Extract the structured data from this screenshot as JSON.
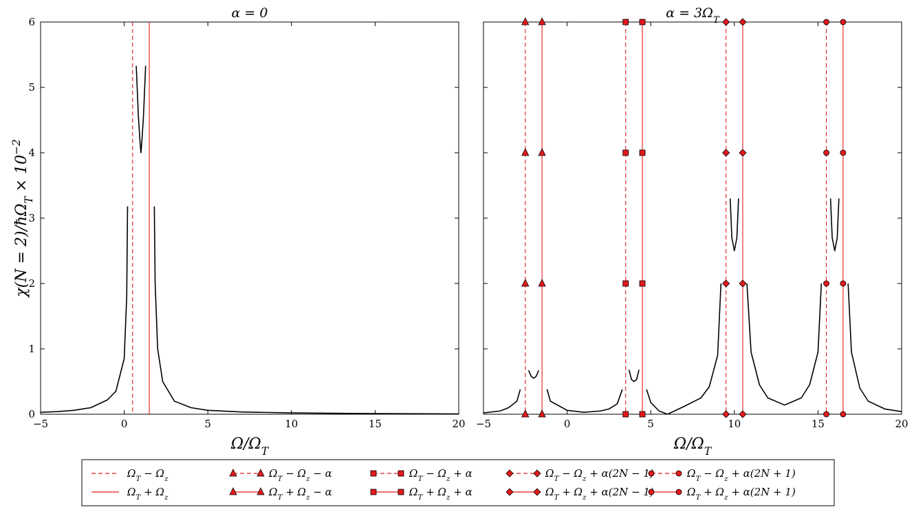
{
  "chart_data": [
    {
      "type": "line",
      "title": "α = 0",
      "xlabel": "Ω/Ω_T",
      "ylabel": "χ(N = 2)/ħΩ_T × 10⁻²",
      "xlim": [
        -5,
        20
      ],
      "ylim": [
        0,
        6
      ],
      "xticks": [
        -5,
        0,
        5,
        10,
        15,
        20
      ],
      "yticks": [
        0,
        1,
        2,
        3,
        4,
        5,
        6
      ],
      "xtick_labels": [
        "−5",
        "0",
        "5",
        "10",
        "15",
        "20"
      ],
      "ytick_labels": [
        "0",
        "1",
        "2",
        "3",
        "4",
        "5",
        "6"
      ],
      "grid": false,
      "vlines": [
        {
          "x": 0.5,
          "style": "dashed",
          "color": "#e31a1c",
          "marker": "none"
        },
        {
          "x": 1.5,
          "style": "solid",
          "color": "#e31a1c",
          "marker": "none"
        }
      ],
      "curve_segments": [
        {
          "x": [
            -5,
            -4,
            -3,
            -2,
            -1,
            -0.5,
            0,
            0.15,
            0.2
          ],
          "y": [
            0.03,
            0.04,
            0.06,
            0.1,
            0.22,
            0.35,
            0.85,
            1.8,
            3.18
          ]
        },
        {
          "x": [
            0.72,
            0.85,
            0.95,
            1.0,
            1.05,
            1.15,
            1.28
          ],
          "y": [
            5.33,
            4.55,
            4.15,
            4.0,
            4.15,
            4.55,
            5.33
          ]
        },
        {
          "x": [
            1.8,
            1.85,
            2.0,
            2.3,
            3,
            4,
            5,
            7,
            10,
            15,
            20
          ],
          "y": [
            3.18,
            2.0,
            1.0,
            0.5,
            0.2,
            0.1,
            0.06,
            0.035,
            0.02,
            0.01,
            0.005
          ]
        }
      ]
    },
    {
      "type": "line",
      "title": "α = 3Ω_T",
      "xlabel": "Ω/Ω_T",
      "xlim": [
        -5,
        20
      ],
      "ylim": [
        0,
        6
      ],
      "xticks": [
        -5,
        0,
        5,
        10,
        15,
        20
      ],
      "yticks": [
        0,
        1,
        2,
        3,
        4,
        5,
        6
      ],
      "xtick_labels": [
        "−5",
        "0",
        "5",
        "10",
        "15",
        "20"
      ],
      "grid": false,
      "vlines": [
        {
          "x": -2.5,
          "style": "dashed",
          "color": "#e31a1c",
          "marker": "triangle",
          "marker_y": [
            0,
            2,
            4,
            6
          ]
        },
        {
          "x": -1.5,
          "style": "solid",
          "color": "#e31a1c",
          "marker": "triangle",
          "marker_y": [
            0,
            2,
            4,
            6
          ]
        },
        {
          "x": 3.5,
          "style": "dashed",
          "color": "#e31a1c",
          "marker": "square",
          "marker_y": [
            0,
            2,
            4,
            6
          ]
        },
        {
          "x": 4.5,
          "style": "solid",
          "color": "#e31a1c",
          "marker": "square",
          "marker_y": [
            0,
            2,
            4,
            6
          ]
        },
        {
          "x": 9.5,
          "style": "dashed",
          "color": "#e31a1c",
          "marker": "diamond",
          "marker_y": [
            0,
            2,
            4,
            6
          ]
        },
        {
          "x": 10.5,
          "style": "solid",
          "color": "#e31a1c",
          "marker": "diamond",
          "marker_y": [
            0,
            2,
            4,
            6
          ]
        },
        {
          "x": 15.5,
          "style": "dashed",
          "color": "#e31a1c",
          "marker": "circle",
          "marker_y": [
            0,
            2,
            4,
            6
          ]
        },
        {
          "x": 16.5,
          "style": "solid",
          "color": "#e31a1c",
          "marker": "circle",
          "marker_y": [
            0,
            2,
            4,
            6
          ]
        }
      ],
      "curve_segments": [
        {
          "x": [
            -5,
            -4,
            -3.5,
            -3,
            -2.8
          ],
          "y": [
            0.02,
            0.05,
            0.1,
            0.2,
            0.38
          ]
        },
        {
          "x": [
            -2.3,
            -2.15,
            -2.0,
            -1.85,
            -1.7
          ],
          "y": [
            0.67,
            0.58,
            0.55,
            0.58,
            0.67
          ]
        },
        {
          "x": [
            -1.2,
            -1,
            0,
            1,
            2,
            2.5,
            3,
            3.3
          ],
          "y": [
            0.38,
            0.2,
            0.06,
            0.03,
            0.05,
            0.08,
            0.16,
            0.38
          ]
        },
        {
          "x": [
            3.7,
            3.85,
            4.0,
            4.15,
            4.3
          ],
          "y": [
            0.68,
            0.53,
            0.5,
            0.53,
            0.68
          ]
        },
        {
          "x": [
            4.75,
            5.0,
            5.5,
            6.0
          ],
          "y": [
            0.38,
            0.18,
            0.05,
            0.0
          ]
        },
        {
          "x": [
            6.0,
            7,
            8,
            8.5,
            9,
            9.2
          ],
          "y": [
            0.0,
            0.12,
            0.25,
            0.42,
            0.9,
            2.0
          ]
        },
        {
          "x": [
            9.75,
            9.85,
            10.0,
            10.15,
            10.25
          ],
          "y": [
            3.3,
            2.7,
            2.5,
            2.7,
            3.3
          ]
        },
        {
          "x": [
            10.75,
            11,
            11.5,
            12,
            13,
            14,
            14.5,
            15,
            15.2
          ],
          "y": [
            2.0,
            0.95,
            0.45,
            0.25,
            0.14,
            0.25,
            0.45,
            0.95,
            2.0
          ]
        },
        {
          "x": [
            15.75,
            15.85,
            16.0,
            16.15,
            16.25
          ],
          "y": [
            3.3,
            2.7,
            2.5,
            2.7,
            3.3
          ]
        },
        {
          "x": [
            16.8,
            17,
            17.5,
            18,
            19,
            20
          ],
          "y": [
            2.0,
            0.95,
            0.4,
            0.2,
            0.08,
            0.04
          ]
        }
      ]
    }
  ],
  "legend": {
    "position": "bottom-center",
    "entries": [
      {
        "label": "Ω_T − Ω_z",
        "style": "dashed",
        "marker": "none"
      },
      {
        "label": "Ω_T + Ω_z",
        "style": "solid",
        "marker": "none"
      },
      {
        "label": "Ω_T − Ω_z − α",
        "style": "dashed",
        "marker": "triangle"
      },
      {
        "label": "Ω_T + Ω_z − α",
        "style": "solid",
        "marker": "triangle"
      },
      {
        "label": "Ω_T − Ω_z + α",
        "style": "dashed",
        "marker": "square"
      },
      {
        "label": "Ω_T + Ω_z + α",
        "style": "solid",
        "marker": "square"
      },
      {
        "label": "Ω_T − Ω_z + α(2N − 1)",
        "style": "dashed",
        "marker": "diamond"
      },
      {
        "label": "Ω_T + Ω_z + α(2N − 1)",
        "style": "solid",
        "marker": "diamond"
      },
      {
        "label": "Ω_T − Ω_z + α(2N + 1)",
        "style": "dashed",
        "marker": "circle"
      },
      {
        "label": "Ω_T + Ω_z + α(2N + 1)",
        "style": "solid",
        "marker": "circle"
      }
    ]
  },
  "colors": {
    "line_red": "#e31a1c",
    "marker_fill": "#e31a1c",
    "curve": "#000000"
  }
}
